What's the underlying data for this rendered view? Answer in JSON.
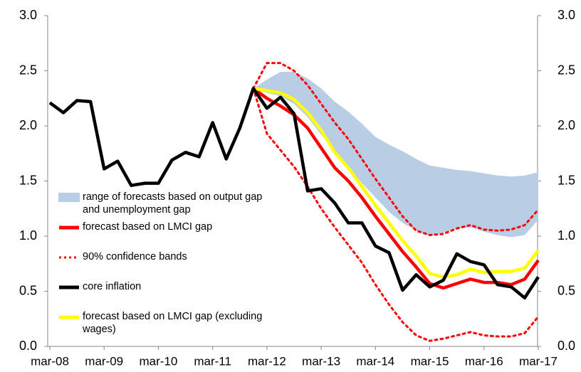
{
  "chart_data": {
    "type": "line",
    "categories": [
      "mar-08",
      null,
      null,
      null,
      "mar-09",
      null,
      null,
      null,
      "mar-10",
      null,
      null,
      null,
      "mar-11",
      null,
      null,
      null,
      "mar-12",
      null,
      null,
      null,
      "mar-13",
      null,
      null,
      null,
      "mar-14",
      null,
      null,
      null,
      "mar-15",
      null,
      null,
      null,
      "mar-16",
      null,
      null,
      null,
      "mar-17"
    ],
    "ylim": [
      0,
      3
    ],
    "yticks": [
      {
        "value": 0,
        "label": "0.0"
      },
      {
        "value": 0.5,
        "label": "0.5"
      },
      {
        "value": 1,
        "label": "1.0"
      },
      {
        "value": 1.5,
        "label": "1.5"
      },
      {
        "value": 2,
        "label": "2.0"
      },
      {
        "value": 2.5,
        "label": "2.5"
      },
      {
        "value": 3,
        "label": "3.0"
      }
    ],
    "y2lim": [
      0,
      3
    ],
    "y2ticks": [
      {
        "value": 0,
        "label": "0.0"
      },
      {
        "value": 0.5,
        "label": "0.5"
      },
      {
        "value": 1,
        "label": "1.0"
      },
      {
        "value": 1.5,
        "label": "1.5"
      },
      {
        "value": 2,
        "label": "2.0"
      },
      {
        "value": 2.5,
        "label": "2.5"
      },
      {
        "value": 3,
        "label": "3.0"
      }
    ],
    "legend": "left",
    "series": [
      {
        "name": "range of forecasts based on output gap and unemployment gap",
        "color": "#b9cde5",
        "style": "band",
        "high": [
          null,
          null,
          null,
          null,
          null,
          null,
          null,
          null,
          null,
          null,
          null,
          null,
          null,
          null,
          null,
          2.34,
          2.42,
          2.49,
          2.49,
          2.43,
          2.34,
          2.22,
          2.13,
          2.02,
          1.9,
          1.83,
          1.77,
          1.7,
          1.64,
          1.62,
          1.6,
          1.59,
          1.57,
          1.55,
          1.54,
          1.55,
          1.58
        ],
        "low": [
          null,
          null,
          null,
          null,
          null,
          null,
          null,
          null,
          null,
          null,
          null,
          null,
          null,
          null,
          null,
          2.34,
          2.3,
          2.27,
          2.2,
          2.08,
          1.92,
          1.77,
          1.63,
          1.48,
          1.35,
          1.22,
          1.12,
          1.05,
          1.0,
          1.03,
          1.07,
          1.08,
          1.04,
          1.01,
          0.99,
          1.01,
          1.15
        ]
      },
      {
        "name": "forecast based on LMCI gap",
        "color": "#ff0000",
        "style": "solid",
        "values": [
          null,
          null,
          null,
          null,
          null,
          null,
          null,
          null,
          null,
          null,
          null,
          null,
          null,
          null,
          null,
          2.34,
          2.25,
          2.18,
          2.1,
          1.98,
          1.8,
          1.62,
          1.5,
          1.35,
          1.18,
          1.02,
          0.86,
          0.72,
          0.57,
          0.53,
          0.57,
          0.61,
          0.58,
          0.58,
          0.56,
          0.61,
          0.78
        ]
      },
      {
        "name": "90% confidence bands",
        "color": "#ff0000",
        "style": "dotted",
        "upper": [
          null,
          null,
          null,
          null,
          null,
          null,
          null,
          null,
          null,
          null,
          null,
          null,
          null,
          null,
          null,
          2.34,
          2.57,
          2.57,
          2.5,
          2.37,
          2.2,
          2.03,
          1.88,
          1.7,
          1.52,
          1.35,
          1.18,
          1.05,
          1.01,
          1.02,
          1.07,
          1.1,
          1.06,
          1.05,
          1.06,
          1.1,
          1.24
        ],
        "lower": [
          null,
          null,
          null,
          null,
          null,
          null,
          null,
          null,
          null,
          null,
          null,
          null,
          null,
          null,
          null,
          2.34,
          1.93,
          1.78,
          1.63,
          1.45,
          1.25,
          1.08,
          0.92,
          0.76,
          0.56,
          0.38,
          0.22,
          0.1,
          0.05,
          0.07,
          0.1,
          0.13,
          0.1,
          0.09,
          0.09,
          0.12,
          0.27
        ]
      },
      {
        "name": "core inflation",
        "color": "#000000",
        "style": "solid",
        "values": [
          2.21,
          2.12,
          2.23,
          2.22,
          1.61,
          1.68,
          1.46,
          1.48,
          1.48,
          1.69,
          1.76,
          1.72,
          2.03,
          1.7,
          1.98,
          2.34,
          2.16,
          2.26,
          2.11,
          1.41,
          1.43,
          1.3,
          1.12,
          1.12,
          0.91,
          0.85,
          0.51,
          0.65,
          0.54,
          0.6,
          0.84,
          0.77,
          0.74,
          0.56,
          0.54,
          0.44,
          0.63
        ]
      },
      {
        "name": "forecast based on LMCI gap (excluding wages)",
        "color": "#ffff00",
        "style": "solid",
        "values": [
          null,
          null,
          null,
          null,
          null,
          null,
          null,
          null,
          null,
          null,
          null,
          null,
          null,
          null,
          null,
          2.34,
          2.32,
          2.3,
          2.24,
          2.12,
          1.96,
          1.76,
          1.62,
          1.45,
          1.28,
          1.12,
          0.96,
          0.82,
          0.66,
          0.63,
          0.65,
          0.7,
          0.67,
          0.68,
          0.68,
          0.71,
          0.87
        ]
      }
    ]
  }
}
